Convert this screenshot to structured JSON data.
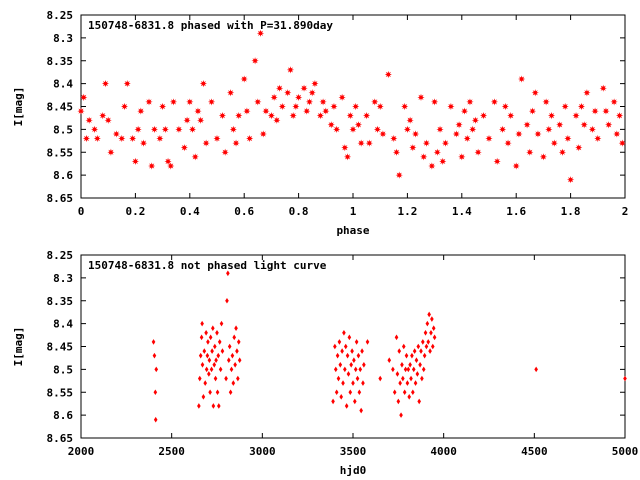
{
  "chart_data": [
    {
      "type": "scatter",
      "title": "150748-6831.8 phased with P=31.890day",
      "xlabel": "phase",
      "ylabel": "I[mag]",
      "xlim": [
        0,
        2
      ],
      "ylim": [
        8.25,
        8.65
      ],
      "y_inverted": true,
      "xticks": [
        "0",
        "0.2",
        "0.4",
        "0.6",
        "0.8",
        "1",
        "1.2",
        "1.4",
        "1.6",
        "1.8",
        "2"
      ],
      "yticks": [
        "8.25",
        "8.3",
        "8.35",
        "8.4",
        "8.45",
        "8.5",
        "8.55",
        "8.6",
        "8.65"
      ],
      "marker": "star",
      "color": "#ff0000",
      "series": [
        {
          "x": [
            0.0,
            0.01,
            0.02,
            0.03,
            0.05,
            0.06,
            0.08,
            0.09,
            0.1,
            0.11,
            0.13,
            0.15,
            0.16,
            0.17,
            0.19,
            0.2,
            0.21,
            0.22,
            0.23,
            0.25,
            0.26,
            0.27,
            0.29,
            0.3,
            0.31,
            0.32,
            0.33,
            0.34,
            0.36,
            0.38,
            0.39,
            0.4,
            0.41,
            0.42,
            0.43,
            0.44,
            0.45,
            0.46,
            0.48,
            0.5,
            0.52,
            0.53,
            0.55,
            0.56,
            0.57,
            0.58,
            0.6,
            0.61,
            0.62,
            0.64,
            0.65,
            0.66,
            0.67,
            0.68,
            0.7,
            0.71,
            0.72,
            0.73,
            0.74,
            0.76,
            0.77,
            0.78,
            0.79,
            0.8,
            0.82,
            0.83,
            0.84,
            0.85,
            0.86,
            0.88,
            0.89,
            0.9,
            0.92,
            0.93,
            0.94,
            0.96,
            0.97,
            0.98,
            0.99,
            1.0,
            1.01,
            1.02,
            1.03,
            1.05,
            1.06,
            1.08,
            1.09,
            1.1,
            1.11,
            1.13,
            1.15,
            1.16,
            1.17,
            1.19,
            1.2,
            1.21,
            1.22,
            1.23,
            1.25,
            1.26,
            1.27,
            1.29,
            1.3,
            1.31,
            1.32,
            1.33,
            1.34,
            1.36,
            1.38,
            1.39,
            1.4,
            1.41,
            1.42,
            1.43,
            1.44,
            1.45,
            1.46,
            1.48,
            1.5,
            1.52,
            1.53,
            1.55,
            1.56,
            1.57,
            1.58,
            1.6,
            1.61,
            1.62,
            1.64,
            1.65,
            1.66,
            1.67,
            1.68,
            1.7,
            1.71,
            1.72,
            1.73,
            1.74,
            1.76,
            1.77,
            1.78,
            1.79,
            1.8,
            1.82,
            1.83,
            1.84,
            1.85,
            1.86,
            1.88,
            1.89,
            1.9,
            1.92,
            1.93,
            1.94,
            1.96,
            1.97,
            1.98,
            1.99
          ],
          "y": [
            8.46,
            8.43,
            8.52,
            8.48,
            8.5,
            8.52,
            8.47,
            8.4,
            8.48,
            8.55,
            8.51,
            8.52,
            8.45,
            8.4,
            8.52,
            8.57,
            8.5,
            8.46,
            8.53,
            8.44,
            8.58,
            8.5,
            8.52,
            8.45,
            8.5,
            8.57,
            8.58,
            8.44,
            8.5,
            8.54,
            8.48,
            8.44,
            8.5,
            8.56,
            8.46,
            8.48,
            8.4,
            8.53,
            8.44,
            8.52,
            8.47,
            8.55,
            8.42,
            8.5,
            8.53,
            8.47,
            8.39,
            8.46,
            8.52,
            8.35,
            8.44,
            8.29,
            8.51,
            8.46,
            8.47,
            8.43,
            8.48,
            8.41,
            8.45,
            8.42,
            8.37,
            8.47,
            8.45,
            8.43,
            8.41,
            8.46,
            8.44,
            8.42,
            8.4,
            8.47,
            8.44,
            8.46,
            8.49,
            8.45,
            8.5,
            8.43,
            8.54,
            8.56,
            8.47,
            8.5,
            8.45,
            8.49,
            8.53,
            8.47,
            8.53,
            8.44,
            8.5,
            8.45,
            8.51,
            8.38,
            8.52,
            8.55,
            8.6,
            8.45,
            8.5,
            8.48,
            8.54,
            8.51,
            8.43,
            8.56,
            8.53,
            8.58,
            8.44,
            8.55,
            8.5,
            8.57,
            8.53,
            8.45,
            8.51,
            8.49,
            8.56,
            8.46,
            8.52,
            8.44,
            8.5,
            8.48,
            8.55,
            8.47,
            8.52,
            8.44,
            8.57,
            8.5,
            8.45,
            8.53,
            8.47,
            8.58,
            8.51,
            8.39,
            8.49,
            8.55,
            8.46,
            8.42,
            8.51,
            8.56,
            8.44,
            8.5,
            8.47,
            8.53,
            8.49,
            8.55,
            8.45,
            8.52,
            8.61,
            8.47,
            8.54,
            8.45,
            8.49,
            8.42,
            8.5,
            8.46,
            8.52,
            8.41,
            8.46,
            8.49,
            8.44,
            8.51,
            8.47,
            8.53
          ]
        }
      ]
    },
    {
      "type": "scatter",
      "title": "150748-6831.8 not phased light curve",
      "xlabel": "hjd0",
      "ylabel": "I[mag]",
      "xlim": [
        2000,
        5000
      ],
      "ylim": [
        8.25,
        8.65
      ],
      "y_inverted": true,
      "xticks": [
        "2000",
        "2500",
        "3000",
        "3500",
        "4000",
        "4500",
        "5000"
      ],
      "yticks": [
        "8.25",
        "8.3",
        "8.35",
        "8.4",
        "8.45",
        "8.5",
        "8.55",
        "8.6",
        "8.65"
      ],
      "marker": "diamond",
      "color": "#ff0000",
      "series": [
        {
          "x": [
            2400,
            2405,
            2410,
            2412,
            2415,
            2650,
            2655,
            2660,
            2665,
            2668,
            2670,
            2675,
            2680,
            2685,
            2690,
            2693,
            2697,
            2700,
            2705,
            2708,
            2712,
            2715,
            2720,
            2723,
            2727,
            2730,
            2735,
            2738,
            2742,
            2745,
            2750,
            2753,
            2757,
            2760,
            2765,
            2770,
            2775,
            2780,
            2800,
            2805,
            2810,
            2815,
            2820,
            2825,
            2830,
            2835,
            2840,
            2845,
            2850,
            2855,
            2860,
            2865,
            2870,
            2875,
            3390,
            3400,
            3405,
            3410,
            3415,
            3420,
            3425,
            3430,
            3435,
            3440,
            3445,
            3450,
            3455,
            3460,
            3465,
            3470,
            3475,
            3480,
            3485,
            3490,
            3495,
            3500,
            3505,
            3510,
            3515,
            3520,
            3525,
            3530,
            3535,
            3540,
            3545,
            3550,
            3555,
            3560,
            3580,
            3650,
            3700,
            3720,
            3730,
            3740,
            3745,
            3750,
            3755,
            3760,
            3765,
            3770,
            3775,
            3780,
            3785,
            3790,
            3795,
            3800,
            3805,
            3810,
            3815,
            3820,
            3825,
            3830,
            3835,
            3840,
            3845,
            3850,
            3855,
            3860,
            3865,
            3870,
            3875,
            3880,
            3885,
            3890,
            3895,
            3900,
            3905,
            3910,
            3915,
            3920,
            3925,
            3930,
            3935,
            3940,
            3945,
            3950,
            4510,
            5000
          ],
          "y": [
            8.44,
            8.47,
            8.55,
            8.61,
            8.5,
            8.58,
            8.52,
            8.47,
            8.43,
            8.4,
            8.49,
            8.56,
            8.46,
            8.53,
            8.42,
            8.5,
            8.47,
            8.44,
            8.51,
            8.48,
            8.55,
            8.43,
            8.5,
            8.46,
            8.41,
            8.58,
            8.49,
            8.45,
            8.52,
            8.48,
            8.42,
            8.55,
            8.47,
            8.58,
            8.44,
            8.5,
            8.4,
            8.46,
            8.52,
            8.35,
            8.29,
            8.48,
            8.45,
            8.55,
            8.5,
            8.47,
            8.53,
            8.43,
            8.49,
            8.41,
            8.46,
            8.52,
            8.44,
            8.48,
            8.57,
            8.45,
            8.5,
            8.55,
            8.47,
            8.52,
            8.44,
            8.49,
            8.56,
            8.46,
            8.53,
            8.42,
            8.5,
            8.45,
            8.58,
            8.47,
            8.51,
            8.43,
            8.55,
            8.49,
            8.46,
            8.53,
            8.48,
            8.57,
            8.5,
            8.44,
            8.52,
            8.47,
            8.55,
            8.5,
            8.59,
            8.46,
            8.53,
            8.49,
            8.44,
            8.52,
            8.48,
            8.5,
            8.55,
            8.43,
            8.51,
            8.57,
            8.46,
            8.53,
            8.6,
            8.49,
            8.52,
            8.45,
            8.55,
            8.5,
            8.47,
            8.53,
            8.5,
            8.56,
            8.49,
            8.52,
            8.47,
            8.55,
            8.5,
            8.46,
            8.53,
            8.48,
            8.51,
            8.45,
            8.57,
            8.49,
            8.46,
            8.52,
            8.44,
            8.5,
            8.47,
            8.42,
            8.45,
            8.4,
            8.44,
            8.38,
            8.46,
            8.42,
            8.39,
            8.45,
            8.41,
            8.43,
            8.5,
            8.52
          ]
        }
      ]
    }
  ]
}
